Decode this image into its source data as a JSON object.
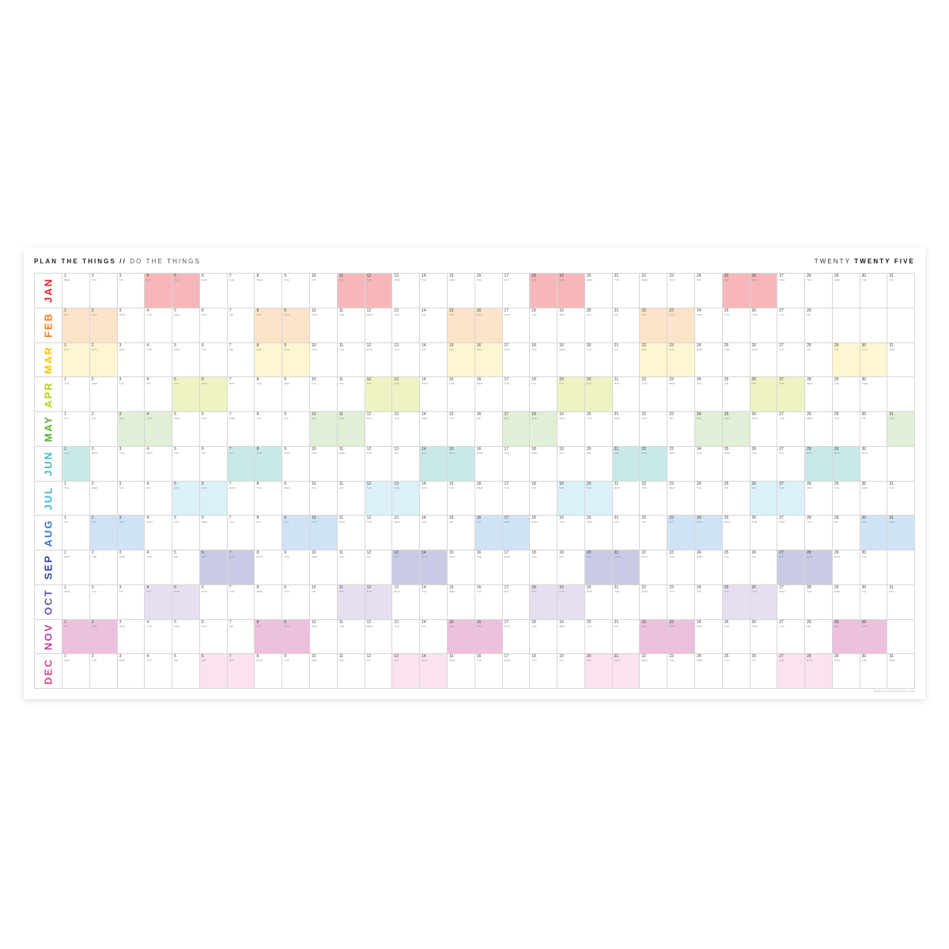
{
  "header": {
    "title_bold": "PLAN THE THINGS //",
    "title_light": "DO THE THINGS",
    "year_light": "TWENTY",
    "year_bold": "TWENTY FIVE"
  },
  "weekdays": [
    "MON",
    "TUE",
    "WED",
    "THU",
    "FRI",
    "SAT",
    "SUN"
  ],
  "weekend": [
    "SAT",
    "SUN"
  ],
  "months": [
    {
      "name": "JAN",
      "days": 31,
      "first_weekday": "WED",
      "label_color": "#e8232a",
      "fill_color": "#f7b7ba"
    },
    {
      "name": "FEB",
      "days": 28,
      "first_weekday": "SAT",
      "label_color": "#f47c20",
      "fill_color": "#fde3ca"
    },
    {
      "name": "MAR",
      "days": 31,
      "first_weekday": "SAT",
      "label_color": "#f5c400",
      "fill_color": "#fdf6d0"
    },
    {
      "name": "APR",
      "days": 30,
      "first_weekday": "TUE",
      "label_color": "#b5cf1c",
      "fill_color": "#eff3c4"
    },
    {
      "name": "MAY",
      "days": 31,
      "first_weekday": "THU",
      "label_color": "#5bb031",
      "fill_color": "#e1efd7"
    },
    {
      "name": "JUN",
      "days": 30,
      "first_weekday": "SUN",
      "label_color": "#3ebcc0",
      "fill_color": "#c9e9e8"
    },
    {
      "name": "JUL",
      "days": 31,
      "first_weekday": "TUE",
      "label_color": "#3fb8e0",
      "fill_color": "#dcf0f8"
    },
    {
      "name": "AUG",
      "days": 31,
      "first_weekday": "FRI",
      "label_color": "#3b74c8",
      "fill_color": "#cfe3f5"
    },
    {
      "name": "SEP",
      "days": 30,
      "first_weekday": "MON",
      "label_color": "#2f3f9f",
      "fill_color": "#c9cbe6"
    },
    {
      "name": "OCT",
      "days": 31,
      "first_weekday": "WED",
      "label_color": "#6f55a8",
      "fill_color": "#e6dff0"
    },
    {
      "name": "NOV",
      "days": 30,
      "first_weekday": "SAT",
      "label_color": "#c0409a",
      "fill_color": "#edc0dd"
    },
    {
      "name": "DEC",
      "days": 31,
      "first_weekday": "MON",
      "label_color": "#e8408a",
      "fill_color": "#fbe2ee"
    }
  ],
  "footer": "WWW.PLANTHETHINGS.COM"
}
